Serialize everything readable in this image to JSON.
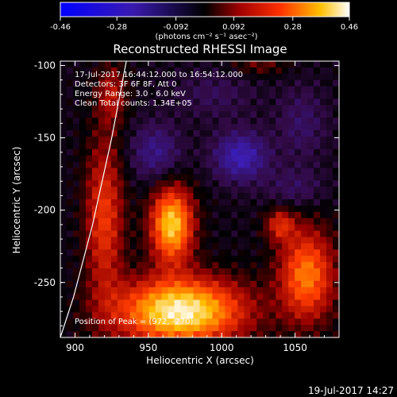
{
  "colorbar": {
    "ticks": [
      "-0.46",
      "-0.28",
      "-0.092",
      "0.092",
      "0.28",
      "0.46"
    ],
    "tick_values": [
      -0.46,
      -0.28,
      -0.092,
      0.092,
      0.28,
      0.46
    ],
    "units_label": "(photons cm⁻² s⁻¹ asec⁻²)"
  },
  "footer": {
    "timestamp": "19-Jul-2017 14:27"
  },
  "chart_data": {
    "type": "heatmap",
    "title": "Reconstructed RHESSI Image",
    "xlabel": "Heliocentric X (arcsec)",
    "ylabel": "Heliocentric Y (arcsec)",
    "xlim": [
      890,
      1080
    ],
    "ylim": [
      -288,
      -97
    ],
    "x_ticks": [
      900,
      950,
      1000,
      1050
    ],
    "y_ticks": [
      -100,
      -150,
      -200,
      -250
    ],
    "value_range": [
      -0.46,
      0.46
    ],
    "colormap": "blue-black-red-yellow-white",
    "annotations": [
      "17-Jul-2017 16:44:12.000 to 16:54:12.000",
      "Detectors: 3F 6F 8F, Att 0",
      "Energy Range: 3.0 - 6.0 keV",
      "Clean    Total counts: 1.34E+05",
      "Position of Peak = (972, -270)"
    ],
    "sources": [
      {
        "x": 972,
        "y": -270,
        "sx": 30,
        "sy": 16,
        "amp": 0.46
      },
      {
        "x": 1058,
        "y": -245,
        "sx": 13,
        "sy": 22,
        "amp": 0.3
      },
      {
        "x": 1040,
        "y": -210,
        "sx": 7,
        "sy": 8,
        "amp": 0.18
      },
      {
        "x": 966,
        "y": -210,
        "sx": 10,
        "sy": 18,
        "amp": 0.4
      },
      {
        "x": 920,
        "y": -205,
        "sx": 9,
        "sy": 38,
        "amp": 0.22
      },
      {
        "x": 925,
        "y": -120,
        "sx": 7,
        "sy": 14,
        "amp": 0.14
      },
      {
        "x": 1025,
        "y": -100,
        "sx": 14,
        "sy": 5,
        "amp": 0.08
      },
      {
        "x": 1013,
        "y": -163,
        "sx": 13,
        "sy": 12,
        "amp": -0.21
      },
      {
        "x": 955,
        "y": -160,
        "sx": 12,
        "sy": 14,
        "amp": -0.14
      },
      {
        "x": 1055,
        "y": -140,
        "sx": 12,
        "sy": 18,
        "amp": -0.09
      },
      {
        "x": 1050,
        "y": -185,
        "sx": 14,
        "sy": 10,
        "amp": -0.08
      },
      {
        "x": 995,
        "y": -120,
        "sx": 20,
        "sy": 12,
        "amp": -0.07
      }
    ],
    "limb_points": [
      [
        935,
        -97
      ],
      [
        925,
        -150
      ],
      [
        912,
        -210
      ],
      [
        899,
        -260
      ],
      [
        890,
        -288
      ]
    ]
  }
}
